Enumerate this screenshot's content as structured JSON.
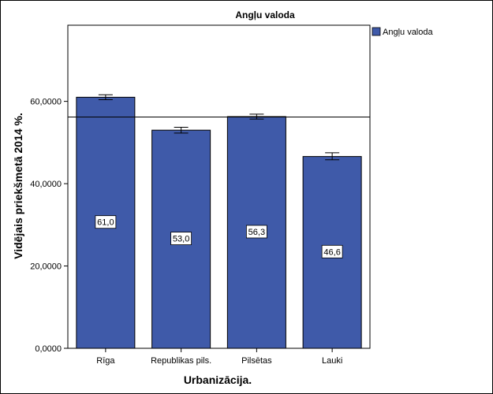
{
  "chart_data": {
    "type": "bar",
    "title": "Angļu valoda",
    "xlabel": "Urbanizācija.",
    "ylabel": "Vidējais priekšmetā 2014 %.",
    "categories": [
      "Rīga",
      "Republikas pils.",
      "Pilsētas",
      "Lauki"
    ],
    "series": [
      {
        "name": "Angļu valoda",
        "values": [
          61.0,
          53.0,
          56.3,
          46.6
        ],
        "error_low": [
          60.4,
          52.3,
          55.7,
          45.8
        ],
        "error_high": [
          61.6,
          53.7,
          56.9,
          47.5
        ],
        "data_labels": [
          "61,0",
          "53,0",
          "56,3",
          "46,6"
        ],
        "color": "#3F5AA9"
      }
    ],
    "yticks": [
      0,
      20,
      40,
      60
    ],
    "ytick_labels": [
      "0,0000",
      "20,0000",
      "40,0000",
      "60,0000"
    ],
    "ylim": [
      0,
      78.5
    ],
    "reference_line": 56.2,
    "legend": {
      "position": "top-right",
      "entries": [
        "Angļu valoda"
      ]
    },
    "grid": false
  }
}
